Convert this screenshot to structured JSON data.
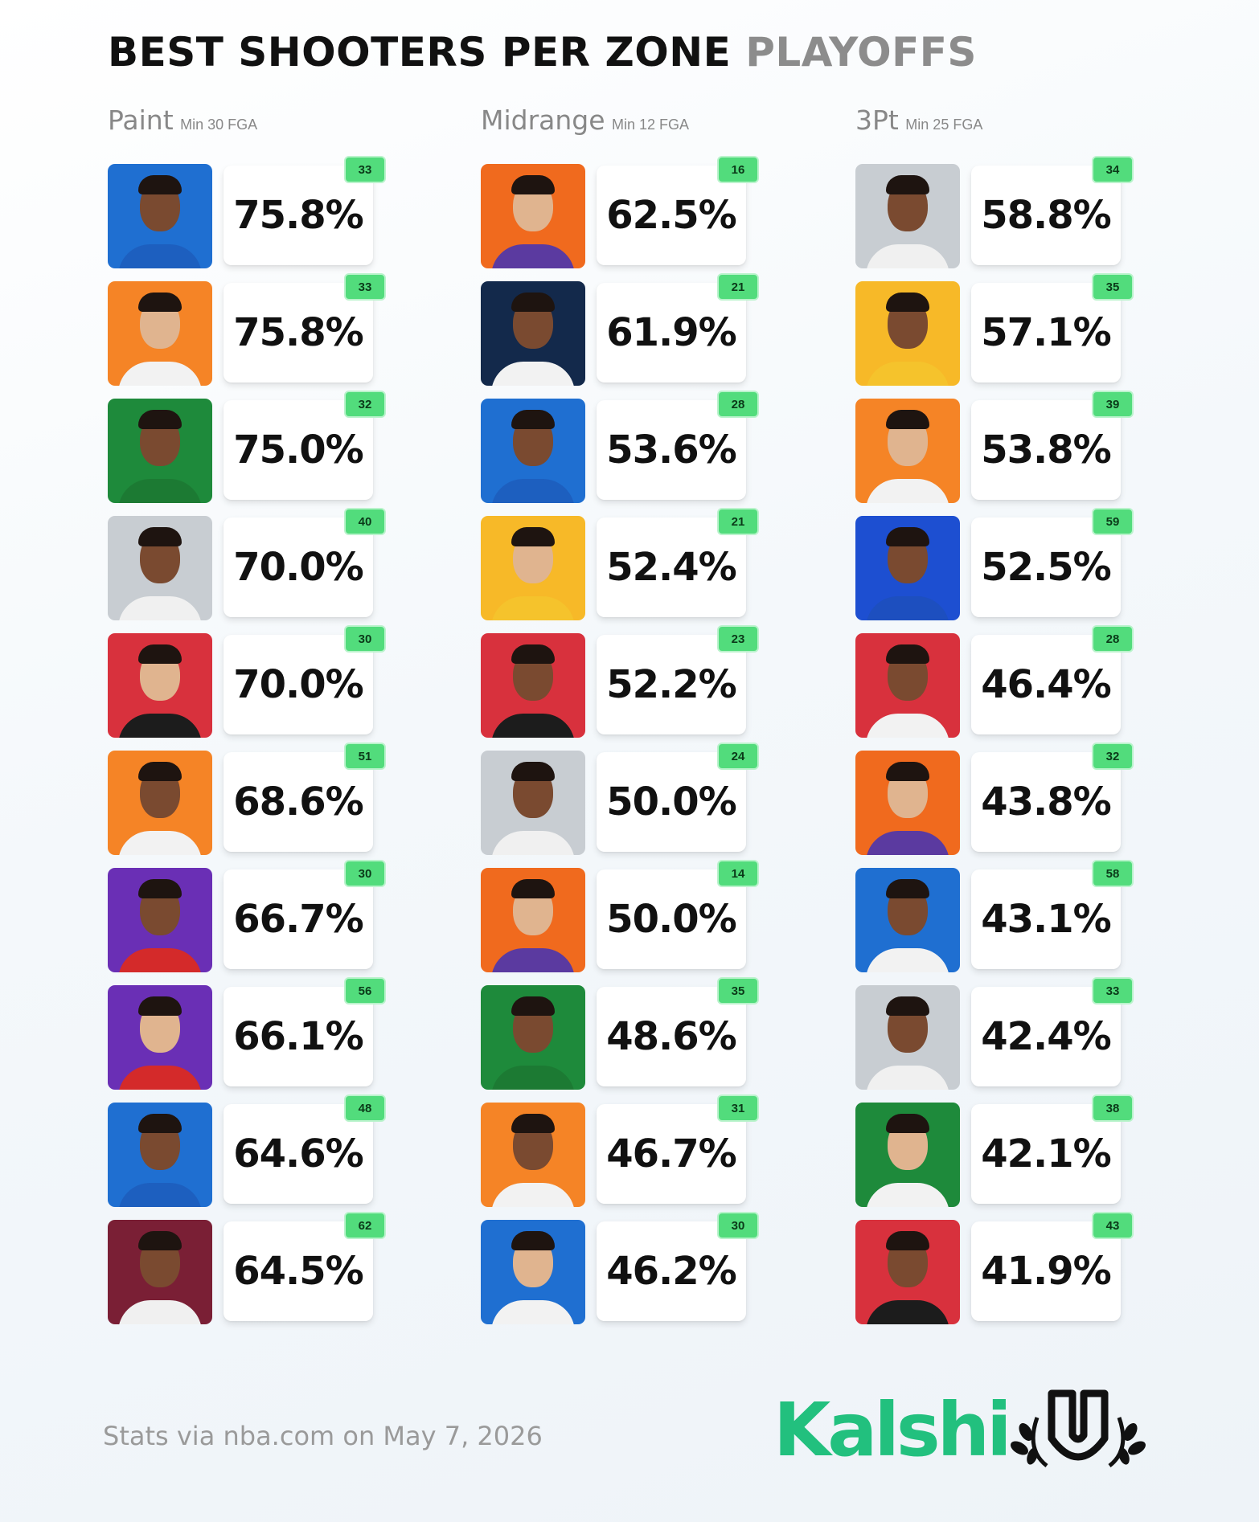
{
  "title": {
    "main": "BEST SHOOTERS PER ZONE",
    "accent": "PLAYOFFS"
  },
  "chart_data": {
    "type": "table",
    "columns": [
      {
        "zone": "Paint",
        "minimum": "Min 30 FGA",
        "rows": [
          {
            "pct": "75.8%",
            "fga": "33",
            "team_color": "#1f6fd1",
            "jersey_color": "#1d5fbf"
          },
          {
            "pct": "75.8%",
            "fga": "33",
            "team_color": "#f58426",
            "jersey_color": "#f2f2f2"
          },
          {
            "pct": "75.0%",
            "fga": "32",
            "team_color": "#1e8a3b",
            "jersey_color": "#1c7a33"
          },
          {
            "pct": "70.0%",
            "fga": "40",
            "team_color": "#c8cdd2",
            "jersey_color": "#f0f0f0"
          },
          {
            "pct": "70.0%",
            "fga": "30",
            "team_color": "#d8313d",
            "jersey_color": "#1c1c1c"
          },
          {
            "pct": "68.6%",
            "fga": "51",
            "team_color": "#f58426",
            "jersey_color": "#f2f2f2"
          },
          {
            "pct": "66.7%",
            "fga": "30",
            "team_color": "#6a2fb5",
            "jersey_color": "#d42a2a"
          },
          {
            "pct": "66.1%",
            "fga": "56",
            "team_color": "#6a2fb5",
            "jersey_color": "#d42a2a"
          },
          {
            "pct": "64.6%",
            "fga": "48",
            "team_color": "#1f6fd1",
            "jersey_color": "#1d5fbf"
          },
          {
            "pct": "64.5%",
            "fga": "62",
            "team_color": "#7a1f35",
            "jersey_color": "#f0f0f0"
          }
        ]
      },
      {
        "zone": "Midrange",
        "minimum": "Min 12 FGA",
        "rows": [
          {
            "pct": "62.5%",
            "fga": "16",
            "team_color": "#f06a1e",
            "jersey_color": "#5b3aa0"
          },
          {
            "pct": "61.9%",
            "fga": "21",
            "team_color": "#13294b",
            "jersey_color": "#f2f2f2"
          },
          {
            "pct": "53.6%",
            "fga": "28",
            "team_color": "#1f6fd1",
            "jersey_color": "#1d5fbf"
          },
          {
            "pct": "52.4%",
            "fga": "21",
            "team_color": "#f7b928",
            "jersey_color": "#f5c32c"
          },
          {
            "pct": "52.2%",
            "fga": "23",
            "team_color": "#d8313d",
            "jersey_color": "#1c1c1c"
          },
          {
            "pct": "50.0%",
            "fga": "24",
            "team_color": "#c8cdd2",
            "jersey_color": "#f0f0f0"
          },
          {
            "pct": "50.0%",
            "fga": "14",
            "team_color": "#f06a1e",
            "jersey_color": "#5b3aa0"
          },
          {
            "pct": "48.6%",
            "fga": "35",
            "team_color": "#1e8a3b",
            "jersey_color": "#1c7a33"
          },
          {
            "pct": "46.7%",
            "fga": "31",
            "team_color": "#f58426",
            "jersey_color": "#f2f2f2"
          },
          {
            "pct": "46.2%",
            "fga": "30",
            "team_color": "#1f6fd1",
            "jersey_color": "#f2f2f2"
          }
        ]
      },
      {
        "zone": "3Pt",
        "minimum": "Min 25 FGA",
        "rows": [
          {
            "pct": "58.8%",
            "fga": "34",
            "team_color": "#c8cdd2",
            "jersey_color": "#f0f0f0"
          },
          {
            "pct": "57.1%",
            "fga": "35",
            "team_color": "#f7b928",
            "jersey_color": "#f5c32c"
          },
          {
            "pct": "53.8%",
            "fga": "39",
            "team_color": "#f58426",
            "jersey_color": "#f2f2f2"
          },
          {
            "pct": "52.5%",
            "fga": "59",
            "team_color": "#1d4fd1",
            "jersey_color": "#1d4fbf"
          },
          {
            "pct": "46.4%",
            "fga": "28",
            "team_color": "#d8313d",
            "jersey_color": "#f2f2f2"
          },
          {
            "pct": "43.8%",
            "fga": "32",
            "team_color": "#f06a1e",
            "jersey_color": "#5b3aa0"
          },
          {
            "pct": "43.1%",
            "fga": "58",
            "team_color": "#1f6fd1",
            "jersey_color": "#f2f2f2"
          },
          {
            "pct": "42.4%",
            "fga": "33",
            "team_color": "#c8cdd2",
            "jersey_color": "#f0f0f0"
          },
          {
            "pct": "42.1%",
            "fga": "38",
            "team_color": "#1e8a3b",
            "jersey_color": "#f2f2f2"
          },
          {
            "pct": "41.9%",
            "fga": "43",
            "team_color": "#d8313d",
            "jersey_color": "#1c1c1c"
          }
        ]
      }
    ]
  },
  "footer": {
    "source": "Stats via nba.com on May 7, 2026",
    "brand": "Kalshi"
  },
  "colors": {
    "badge": "#52dc7c",
    "brand": "#22c07e",
    "muted_text": "#888888"
  },
  "icons": {
    "logo": "laurel-u-logo-icon"
  }
}
